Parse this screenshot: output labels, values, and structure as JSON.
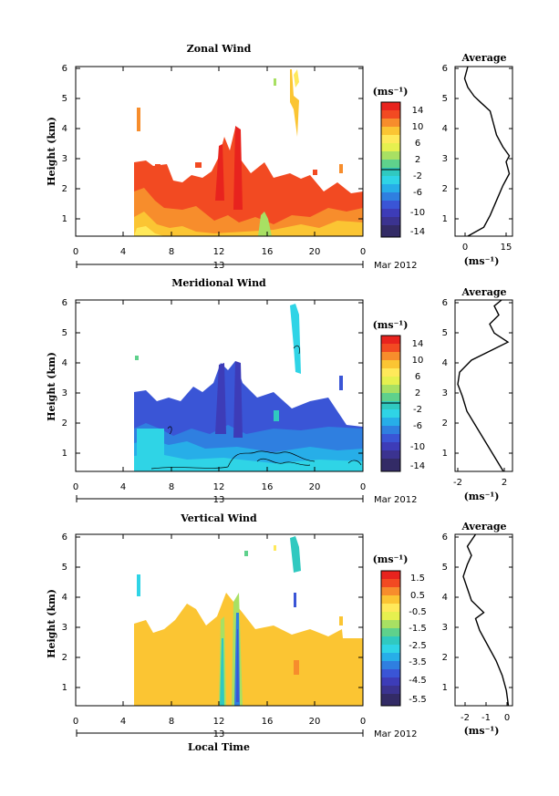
{
  "figure": {
    "panels": [
      {
        "key": "zonal",
        "title": "Zonal Wind",
        "ylabel": "Height (km)",
        "unit": "(ms⁻¹)",
        "cbar_ticks": [
          "14",
          "10",
          "6",
          "2",
          "-2",
          "-6",
          "-10",
          "-14"
        ],
        "avg_title": "Average",
        "avg_unit": "(ms⁻¹)",
        "avg_xticks": [
          "0",
          "15"
        ],
        "avg_xlim": [
          -3,
          15
        ]
      },
      {
        "key": "meridional",
        "title": "Meridional Wind",
        "ylabel": "Height (km)",
        "unit": "(ms⁻¹)",
        "cbar_ticks": [
          "14",
          "10",
          "6",
          "2",
          "-2",
          "-6",
          "-10",
          "-14"
        ],
        "avg_title": "Average",
        "avg_unit": "(ms⁻¹)",
        "avg_xticks": [
          "-2",
          "2"
        ],
        "avg_xlim": [
          -3.3,
          3
        ]
      },
      {
        "key": "vertical",
        "title": "Vertical Wind",
        "ylabel": "Height (km)",
        "unit": "(ms⁻¹)",
        "cbar_ticks": [
          "1.5",
          "0.5",
          "-0.5",
          "-1.5",
          "-2.5",
          "-3.5",
          "-4.5",
          "-5.5"
        ],
        "avg_title": "Average",
        "avg_unit": "(ms⁻¹)",
        "avg_xticks": [
          "-2",
          "-1",
          "0"
        ],
        "avg_xlim": [
          -2.6,
          0.2
        ]
      }
    ],
    "xticks": [
      "0",
      "4",
      "8",
      "12",
      "16",
      "20",
      "0"
    ],
    "yticks": [
      "1",
      "2",
      "3",
      "4",
      "5",
      "6"
    ],
    "date_day": "13",
    "date_month_year": "Mar 2012",
    "xlabel": "Local Time"
  },
  "chart_data": [
    {
      "type": "heatmap",
      "title": "Zonal Wind",
      "xlabel": "",
      "ylabel": "Height (km)",
      "xlim": [
        0,
        24
      ],
      "ylim": [
        0.3,
        6
      ],
      "colorbar": {
        "label": "(ms⁻¹)",
        "range": [
          -16,
          16
        ]
      },
      "regions": [
        {
          "name": "",
          "t": [
            5,
            24
          ],
          "h": [
            0.3,
            2.2
          ],
          "value": 14
        },
        {
          "name": "",
          "t": [
            5,
            10
          ],
          "h": [
            0.3,
            1.0
          ],
          "value": 5
        },
        {
          "name": "",
          "t": [
            12,
            14
          ],
          "h": [
            0.3,
            4.0
          ],
          "value": 14
        },
        {
          "name": "",
          "t": [
            16,
            18
          ],
          "h": [
            0.3,
            0.9
          ],
          "value": 3
        },
        {
          "name": "",
          "t": [
            18.5,
            19
          ],
          "h": [
            4.5,
            6.0
          ],
          "value": 3
        }
      ],
      "average": {
        "title": "Average",
        "xlabel": "(ms⁻¹)",
        "x": [
          1,
          6,
          8,
          10,
          12,
          14,
          13,
          14,
          12,
          10,
          9,
          8,
          5,
          3,
          1,
          0,
          1
        ],
        "y": [
          0.3,
          0.6,
          1.0,
          1.5,
          2.0,
          2.4,
          2.8,
          3.0,
          3.3,
          3.7,
          4.1,
          4.5,
          4.8,
          5.0,
          5.3,
          5.6,
          6.0
        ]
      }
    },
    {
      "type": "heatmap",
      "title": "Meridional Wind",
      "xlabel": "",
      "ylabel": "Height (km)",
      "xlim": [
        0,
        24
      ],
      "ylim": [
        0.3,
        6
      ],
      "colorbar": {
        "label": "(ms⁻¹)",
        "range": [
          -16,
          16
        ]
      },
      "regions": [
        {
          "name": "",
          "t": [
            5,
            24
          ],
          "h": [
            0.3,
            1.5
          ],
          "value": -4
        },
        {
          "name": "",
          "t": [
            5,
            10
          ],
          "h": [
            1.5,
            3.0
          ],
          "value": -9
        },
        {
          "name": "",
          "t": [
            12,
            14
          ],
          "h": [
            1.0,
            4.0
          ],
          "value": -9
        },
        {
          "name": "",
          "t": [
            18.5,
            19
          ],
          "h": [
            4.5,
            6.0
          ],
          "value": -4
        }
      ],
      "average": {
        "title": "Average",
        "xlabel": "(ms⁻¹)",
        "x": [
          2.0,
          1.0,
          0,
          -1.0,
          -2.0,
          -2.5,
          -3.0,
          -2.8,
          -1.5,
          0.5,
          2.5,
          1.0,
          0.5,
          1.5,
          1.0,
          1.8
        ],
        "y": [
          0.3,
          0.8,
          1.3,
          1.8,
          2.3,
          2.8,
          3.2,
          3.6,
          4.0,
          4.3,
          4.6,
          4.9,
          5.2,
          5.5,
          5.8,
          6.0
        ]
      }
    },
    {
      "type": "heatmap",
      "title": "Vertical Wind",
      "xlabel": "Local Time",
      "ylabel": "Height (km)",
      "xlim": [
        0,
        24
      ],
      "ylim": [
        0.3,
        6
      ],
      "colorbar": {
        "label": "(ms⁻¹)",
        "range": [
          -6,
          2
        ]
      },
      "regions": [
        {
          "name": "",
          "t": [
            5,
            24
          ],
          "h": [
            0.3,
            2.8
          ],
          "value": 0.2
        },
        {
          "name": "",
          "t": [
            12,
            12.5
          ],
          "h": [
            0.3,
            3.5
          ],
          "value": -3
        },
        {
          "name": "",
          "t": [
            13.3,
            13.8
          ],
          "h": [
            0.3,
            3.5
          ],
          "value": -4
        },
        {
          "name": "",
          "t": [
            18.5,
            19
          ],
          "h": [
            4.5,
            6.0
          ],
          "value": -2
        }
      ],
      "average": {
        "title": "Average",
        "xlabel": "(ms⁻¹)",
        "x": [
          0,
          -0.1,
          -0.3,
          -0.6,
          -1.0,
          -1.4,
          -1.6,
          -1.2,
          -1.8,
          -2.0,
          -2.2,
          -2.0,
          -1.8,
          -2.0,
          -1.8,
          -1.6
        ],
        "y": [
          0.3,
          0.8,
          1.3,
          1.8,
          2.3,
          2.8,
          3.2,
          3.4,
          3.8,
          4.2,
          4.6,
          5.0,
          5.3,
          5.6,
          5.8,
          6.0
        ]
      }
    }
  ]
}
